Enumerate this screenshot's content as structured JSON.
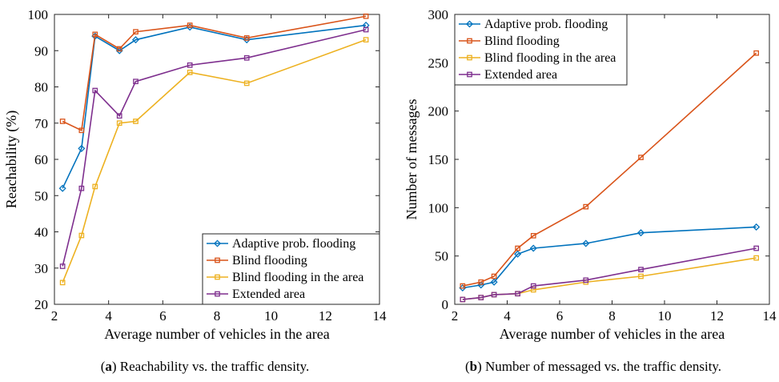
{
  "chart_data": [
    {
      "type": "line",
      "panel_label": "a",
      "caption": "Reachability vs. the traffic density.",
      "title": "",
      "xlabel": "Average number of vehicles in the area",
      "ylabel": "Reachability (%)",
      "xlim": [
        2,
        14
      ],
      "ylim": [
        20,
        100
      ],
      "xticks": [
        2,
        4,
        6,
        8,
        10,
        12,
        14
      ],
      "yticks": [
        20,
        30,
        40,
        50,
        60,
        70,
        80,
        90,
        100
      ],
      "grid": false,
      "legend_position": "bottom-right",
      "x": [
        2.3,
        3.0,
        3.5,
        4.4,
        5.0,
        7.0,
        9.1,
        13.5
      ],
      "series": [
        {
          "name": "Adaptive prob. flooding",
          "color": "#0072BD",
          "marker": "diamond",
          "values": [
            52,
            63,
            94,
            90,
            93,
            96.5,
            93,
            97
          ]
        },
        {
          "name": "Blind flooding",
          "color": "#D95319",
          "marker": "square",
          "values": [
            70.5,
            68,
            94.5,
            90.5,
            95.2,
            97,
            93.5,
            99.5
          ]
        },
        {
          "name": "Blind flooding in the area",
          "color": "#EDB120",
          "marker": "square",
          "values": [
            26,
            39,
            52.5,
            70,
            70.5,
            84,
            81,
            93
          ]
        },
        {
          "name": "Extended area",
          "color": "#7E2F8E",
          "marker": "square",
          "values": [
            30.5,
            52,
            79,
            72,
            81.5,
            86,
            88,
            95.8
          ]
        }
      ]
    },
    {
      "type": "line",
      "panel_label": "b",
      "caption": "Number of messaged vs. the traffic density.",
      "title": "",
      "xlabel": "Average number of vehicles in the area",
      "ylabel": "Number of messages",
      "xlim": [
        2,
        14
      ],
      "ylim": [
        0,
        300
      ],
      "xticks": [
        2,
        4,
        6,
        8,
        10,
        12,
        14
      ],
      "yticks": [
        0,
        50,
        100,
        150,
        200,
        250,
        300
      ],
      "grid": false,
      "legend_position": "top-left",
      "x": [
        2.3,
        3.0,
        3.5,
        4.4,
        5.0,
        7.0,
        9.1,
        13.5
      ],
      "series": [
        {
          "name": "Adaptive prob. flooding",
          "color": "#0072BD",
          "marker": "diamond",
          "values": [
            17,
            20,
            23,
            52,
            58,
            63,
            74,
            80
          ]
        },
        {
          "name": "Blind flooding",
          "color": "#D95319",
          "marker": "square",
          "values": [
            19,
            23,
            29,
            58,
            71,
            101,
            152,
            260
          ]
        },
        {
          "name": "Blind flooding in the area",
          "color": "#EDB120",
          "marker": "square",
          "values": [
            5,
            7,
            10,
            11,
            15,
            23,
            29,
            48
          ]
        },
        {
          "name": "Extended area",
          "color": "#7E2F8E",
          "marker": "square",
          "values": [
            5,
            7,
            10,
            11,
            19,
            25,
            36,
            58
          ]
        }
      ]
    }
  ]
}
